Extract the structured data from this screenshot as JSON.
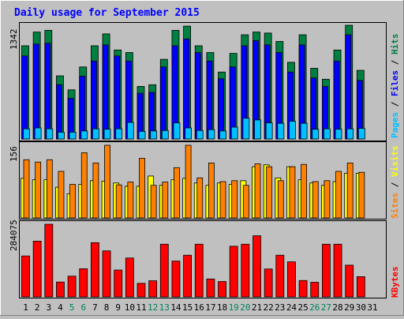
{
  "title": "Daily usage for September 2015",
  "colors": {
    "background": "#c0c0c0",
    "panel": "#c0c0c0",
    "hits": "#008040",
    "files": "#0000ff",
    "pages": "#00c0ff",
    "visits": "#ffff00",
    "sites": "#ff8000",
    "kbytes": "#ff0000",
    "weekend_label": "#00805c",
    "title_text": "#0000ff"
  },
  "chart_data": [
    {
      "type": "bar",
      "panel": "hits-files-pages",
      "ymax_label": "1342",
      "legend": [
        {
          "label": "Hits",
          "color": "#008040"
        },
        {
          "label": "Files",
          "color": "#0000ff"
        },
        {
          "label": "Pages",
          "color": "#00c0ff"
        }
      ],
      "ylim": [
        0,
        1342
      ],
      "categories": [
        "1",
        "2",
        "3",
        "4",
        "5",
        "6",
        "7",
        "8",
        "9",
        "10",
        "11",
        "12",
        "13",
        "14",
        "15",
        "16",
        "17",
        "18",
        "19",
        "20",
        "21",
        "22",
        "23",
        "24",
        "25",
        "26",
        "27",
        "28",
        "29",
        "30",
        "31"
      ],
      "series": [
        {
          "name": "Hits",
          "values": [
            1100,
            1262,
            1282,
            745,
            580,
            850,
            1100,
            1240,
            1050,
            1020,
            620,
            640,
            940,
            1282,
            1332,
            1100,
            1020,
            790,
            1010,
            1230,
            1262,
            1250,
            1151,
            905,
            1230,
            834,
            705,
            1050,
            1342,
            810,
            0
          ]
        },
        {
          "name": "Files",
          "values": [
            980,
            1120,
            1130,
            640,
            480,
            740,
            920,
            1110,
            980,
            920,
            540,
            550,
            850,
            1100,
            1180,
            1020,
            920,
            710,
            850,
            1100,
            1160,
            1110,
            1020,
            790,
            1110,
            720,
            620,
            920,
            1230,
            690,
            0
          ]
        },
        {
          "name": "Pages",
          "values": [
            120,
            130,
            120,
            80,
            80,
            95,
            120,
            115,
            120,
            195,
            90,
            95,
            100,
            190,
            130,
            100,
            110,
            95,
            140,
            245,
            225,
            190,
            185,
            210,
            185,
            115,
            120,
            115,
            120,
            125,
            0
          ]
        }
      ]
    },
    {
      "type": "bar",
      "panel": "visits-sites",
      "ymax_label": "156",
      "legend": [
        {
          "label": "Visits",
          "color": "#ffff00"
        },
        {
          "label": "Sites",
          "color": "#ff8000"
        }
      ],
      "ylim": [
        0,
        156
      ],
      "categories": [
        "1",
        "2",
        "3",
        "4",
        "5",
        "6",
        "7",
        "8",
        "9",
        "10",
        "11",
        "12",
        "13",
        "14",
        "15",
        "16",
        "17",
        "18",
        "19",
        "20",
        "21",
        "22",
        "23",
        "24",
        "25",
        "26",
        "27",
        "28",
        "29",
        "30",
        "31"
      ],
      "series": [
        {
          "name": "Visits",
          "values": [
            85,
            82,
            82,
            66,
            52,
            72,
            80,
            79,
            75,
            68,
            68,
            90,
            70,
            82,
            85,
            75,
            70,
            75,
            72,
            80,
            110,
            114,
            86,
            110,
            82,
            75,
            70,
            78,
            96,
            96,
            0
          ]
        },
        {
          "name": "Sites",
          "values": [
            125,
            120,
            125,
            100,
            72,
            140,
            118,
            156,
            71,
            77,
            128,
            70,
            77,
            108,
            156,
            86,
            118,
            78,
            80,
            70,
            116,
            110,
            80,
            110,
            115,
            78,
            80,
            100,
            118,
            98,
            0
          ]
        }
      ]
    },
    {
      "type": "bar",
      "panel": "kbytes",
      "ymax_label": "284075",
      "legend": [
        {
          "label": "KBytes",
          "color": "#ff0000"
        }
      ],
      "ylim": [
        0,
        284075
      ],
      "categories": [
        "1",
        "2",
        "3",
        "4",
        "5",
        "6",
        "7",
        "8",
        "9",
        "10",
        "11",
        "12",
        "13",
        "14",
        "15",
        "16",
        "17",
        "18",
        "19",
        "20",
        "21",
        "22",
        "23",
        "24",
        "25",
        "26",
        "27",
        "28",
        "29",
        "30",
        "31"
      ],
      "series": [
        {
          "name": "KBytes",
          "values": [
            160000,
            218000,
            284075,
            58000,
            81000,
            110000,
            212000,
            180000,
            105000,
            152000,
            53000,
            63000,
            206000,
            140000,
            163000,
            206000,
            70000,
            60000,
            198000,
            206000,
            239000,
            109000,
            163000,
            137000,
            64000,
            57000,
            206000,
            206000,
            124000,
            79000,
            0
          ]
        }
      ]
    }
  ],
  "x_labels": [
    "1",
    "2",
    "3",
    "4",
    "5",
    "6",
    "7",
    "8",
    "9",
    "10",
    "11",
    "12",
    "13",
    "14",
    "15",
    "16",
    "17",
    "18",
    "19",
    "20",
    "21",
    "22",
    "23",
    "24",
    "25",
    "26",
    "27",
    "28",
    "29",
    "30",
    "31"
  ],
  "weekend_days": [
    "5",
    "6",
    "12",
    "13",
    "19",
    "20",
    "26",
    "27"
  ]
}
